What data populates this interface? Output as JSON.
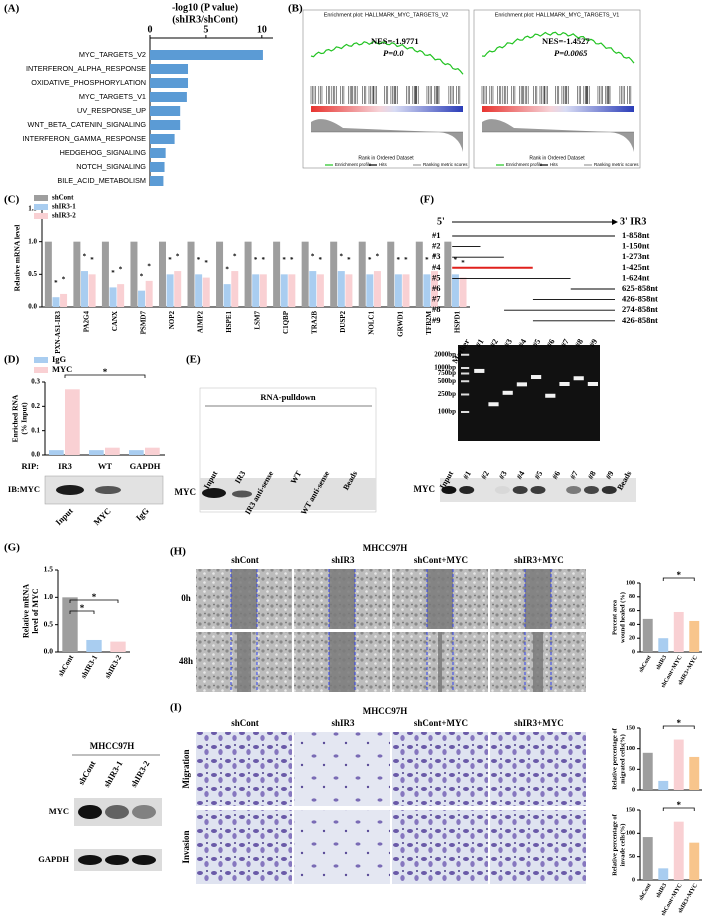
{
  "panel_labels": [
    "(A)",
    "(B)",
    "(C)",
    "(D)",
    "(E)",
    "(F)",
    "(G)",
    "(H)",
    "(I)"
  ],
  "sig": "*",
  "a": {
    "type": "hbar",
    "title": "-log10 (P value)",
    "subtitle": "(shIR3/shCont)",
    "categories": [
      "MYC_TARGETS_V2",
      "INTERFERON_ALPHA_RESPONSE",
      "OXIDATIVE_PHOSPHORYLATION",
      "MYC_TARGETS_V1",
      "UV_RESPONSE_UP",
      "WNT_BETA_CATENIN_SIGNALING",
      "INTERFERON_GAMMA_RESPONSE",
      "HEDGEHOG_SIGNALING",
      "NOTCH_SIGNALING",
      "BILE_ACID_METABOLISM"
    ],
    "values": [
      10.1,
      3.4,
      3.4,
      3.3,
      2.7,
      2.7,
      2.2,
      1.4,
      1.3,
      1.2
    ],
    "color": "#5b9bd5",
    "xlim": [
      0,
      11
    ],
    "xticks": [
      0,
      5,
      10
    ]
  },
  "b": {
    "plots": [
      {
        "title": "Enrichment plot: HALLMARK_MYC_TARGETS_V2",
        "nes": "NES=-1.9771",
        "p": "P=0.0"
      },
      {
        "title": "Enrichment plot: HALLMARK_MYC_TARGETS_V1",
        "nes": "NES=-1.4527",
        "p": "P=0.0065"
      }
    ],
    "xlabel": "Rank in Ordered Dataset",
    "legend": [
      "Enrichment profile",
      "Hits",
      "Ranking metric scores"
    ]
  },
  "c": {
    "type": "bar",
    "ylabel": [
      "Relative mRNA level"
    ],
    "ylim": [
      0,
      1.5
    ],
    "yticks": [
      {
        "value": 0,
        "label": "0.0"
      },
      0.5,
      {
        "value": 1,
        "label": "1.0"
      },
      1.5
    ],
    "categories": [
      "PXN-AS1-IR3",
      "PA2G4",
      "CANX",
      "PSMD7",
      "NOP2",
      "AIMP2",
      "HSPE1",
      "LSM7",
      "C1QBP",
      "TRA2B",
      "DUSP2",
      "NOLC1",
      "GRWD1",
      "TFB2M",
      "HSPD1"
    ],
    "series": [
      {
        "name": "shCont",
        "color": "#9e9e9e",
        "values": [
          1.0,
          1.0,
          1.0,
          1.0,
          1.0,
          1.0,
          1.0,
          1.0,
          1.0,
          1.0,
          1.0,
          1.0,
          1.0,
          1.0,
          1.0
        ]
      },
      {
        "name": "shIR3-1",
        "color": "#a9cdf0",
        "values": [
          0.15,
          0.55,
          0.3,
          0.25,
          0.5,
          0.5,
          0.35,
          0.5,
          0.5,
          0.55,
          0.55,
          0.5,
          0.5,
          0.5,
          0.5
        ]
      },
      {
        "name": "shIR3-2",
        "color": "#f9d0d3",
        "values": [
          0.2,
          0.5,
          0.35,
          0.4,
          0.55,
          0.45,
          0.55,
          0.5,
          0.5,
          0.5,
          0.5,
          0.55,
          0.5,
          0.55,
          0.45
        ]
      }
    ]
  },
  "d": {
    "type": "bar",
    "ylabel": [
      "Enriched RNA",
      "(% Input)"
    ],
    "ylim": [
      0,
      0.3
    ],
    "yticks": [
      {
        "value": 0,
        "label": "0.0"
      },
      0.1,
      0.2,
      0.3
    ],
    "axis_prefix": "RIP:",
    "categories": [
      "IR3",
      "WT",
      "GAPDH"
    ],
    "series": [
      {
        "name": "IgG",
        "color": "#a9cdf0",
        "values": [
          0.02,
          0.02,
          0.02
        ]
      },
      {
        "name": "MYC",
        "color": "#f9d0d3",
        "values": [
          0.27,
          0.03,
          0.03
        ]
      }
    ],
    "blot": {
      "label": "IB:MYC",
      "lanes": [
        "Input",
        "MYC",
        "IgG"
      ]
    }
  },
  "e": {
    "title": "RNA-pulldown",
    "lanes": [
      "Input",
      "IR3",
      "IR3 anti-sense",
      "WT",
      "WT anti-sense",
      "Beads"
    ],
    "band_label": "MYC"
  },
  "f": {
    "five": "5'",
    "three": "3' IR3",
    "fragments": [
      {
        "name": "#1",
        "range": "1-858nt"
      },
      {
        "name": "#2",
        "range": "1-150nt"
      },
      {
        "name": "#3",
        "range": "1-273nt"
      },
      {
        "name": "#4",
        "range": "1-425nt"
      },
      {
        "name": "#5",
        "range": "1-624nt"
      },
      {
        "name": "#6",
        "range": "625-858nt"
      },
      {
        "name": "#7",
        "range": "426-858nt"
      },
      {
        "name": "#8",
        "range": "274-858nt"
      },
      {
        "name": "#9",
        "range": "426-858nt"
      }
    ],
    "gel": {
      "lanes": [
        "Marker",
        "#1",
        "#2",
        "#3",
        "#4",
        "#5",
        "#6",
        "#7",
        "#8",
        "#9"
      ],
      "sizes": [
        "2000bp",
        "1000bp",
        "750bp",
        "500bp",
        "250bp",
        "100bp"
      ]
    },
    "blot": {
      "lanes": [
        "Input",
        "#1",
        "#2",
        "#3",
        "#4",
        "#5",
        "#6",
        "#7",
        "#8",
        "#9",
        "Beads"
      ],
      "label": "MYC"
    }
  },
  "g": {
    "type": "bar",
    "ylabel": [
      "Relative mRNA",
      "level of MYC"
    ],
    "ylim": [
      0,
      1.5
    ],
    "yticks": [
      {
        "value": 0,
        "label": "0.0"
      },
      0.5,
      {
        "value": 1,
        "label": "1.0"
      },
      1.5
    ],
    "categories": [
      "shCont",
      "shIR3-1",
      "shIR3-2"
    ],
    "values": [
      1.0,
      0.22,
      0.19
    ],
    "colors": [
      "#9e9e9e",
      "#a9cdf0",
      "#f9d0d3"
    ],
    "blot": {
      "title": "MHCC97H",
      "lanes": [
        "shCont",
        "shIR3-1",
        "shIR3-2"
      ],
      "rows": [
        "MYC",
        "GAPDH"
      ]
    }
  },
  "h": {
    "title": "MHCC97H",
    "columns": [
      "shCont",
      "shIR3",
      "shCont+MYC",
      "shIR3+MYC"
    ],
    "rows": [
      "0h",
      "48h"
    ],
    "chart": {
      "type": "bar",
      "ylabel": [
        "Percent area",
        "wound healed (%)"
      ],
      "ylim": [
        0,
        100
      ],
      "yticks": [
        0,
        20,
        40,
        60,
        80,
        100
      ],
      "categories": [
        "shCont",
        "shIR3",
        "shCont+MYC",
        "shIR3+MYC"
      ],
      "values": [
        48,
        20,
        58,
        45
      ],
      "colors": [
        "#9e9e9e",
        "#a9cdf0",
        "#f9d0d3",
        "#f8c58c"
      ]
    }
  },
  "i": {
    "title": "MHCC97H",
    "columns": [
      "shCont",
      "shIR3",
      "shCont+MYC",
      "shIR3+MYC"
    ],
    "rows": [
      "Migration",
      "Invasion"
    ],
    "charts": [
      {
        "type": "bar",
        "ylabel": [
          "Relative percentage of",
          "migrated cells(%)"
        ],
        "ylim": [
          0,
          150
        ],
        "yticks": [
          0,
          50,
          100,
          150
        ],
        "categories": [
          "shCont",
          "shIR3",
          "shCont+MYC",
          "shIR3+MYC"
        ],
        "values": [
          90,
          22,
          122,
          80
        ],
        "colors": [
          "#9e9e9e",
          "#a9cdf0",
          "#f9d0d3",
          "#f8c58c"
        ]
      },
      {
        "type": "bar",
        "ylabel": [
          "Relative percentage of",
          "invade cells(%)"
        ],
        "ylim": [
          0,
          150
        ],
        "yticks": [
          0,
          50,
          100,
          150
        ],
        "categories": [
          "shCont",
          "shIR3",
          "shCont+MYC",
          "shIR3+MYC"
        ],
        "values": [
          92,
          25,
          125,
          80
        ],
        "colors": [
          "#9e9e9e",
          "#a9cdf0",
          "#f9d0d3",
          "#f8c58c"
        ]
      }
    ]
  }
}
